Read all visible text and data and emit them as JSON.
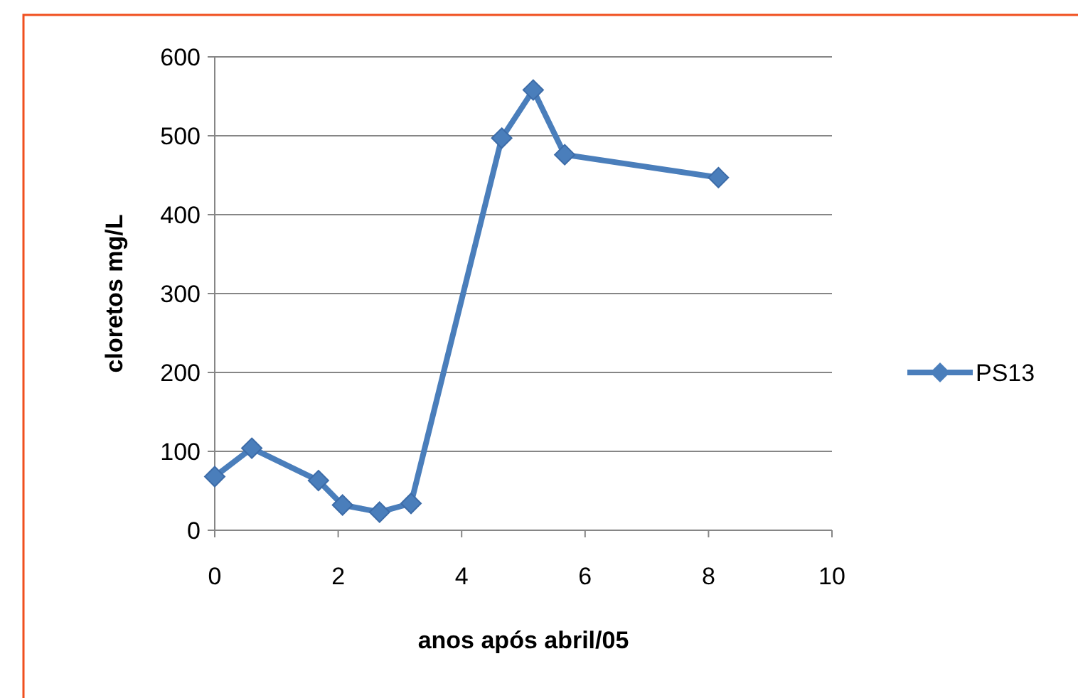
{
  "chart_data": {
    "type": "line",
    "xlabel": "anos após  abril/05",
    "ylabel": "cloretos mg/L",
    "xlim": [
      0,
      10
    ],
    "xticks": [
      0,
      2,
      4,
      6,
      8,
      10
    ],
    "ylim": [
      0,
      600
    ],
    "yticks": [
      0,
      100,
      200,
      300,
      400,
      500,
      600
    ],
    "grid": "y",
    "legend": "right",
    "marker": "diamond",
    "line_style": "solid",
    "series": [
      {
        "name": "PS13",
        "color": "#4a7ebb",
        "x": [
          0,
          0.6,
          1.68,
          2.07,
          2.67,
          3.18,
          4.65,
          5.16,
          5.67,
          8.16
        ],
        "values": [
          68,
          104,
          63,
          32,
          23,
          34,
          497,
          558,
          476,
          447
        ]
      }
    ]
  }
}
